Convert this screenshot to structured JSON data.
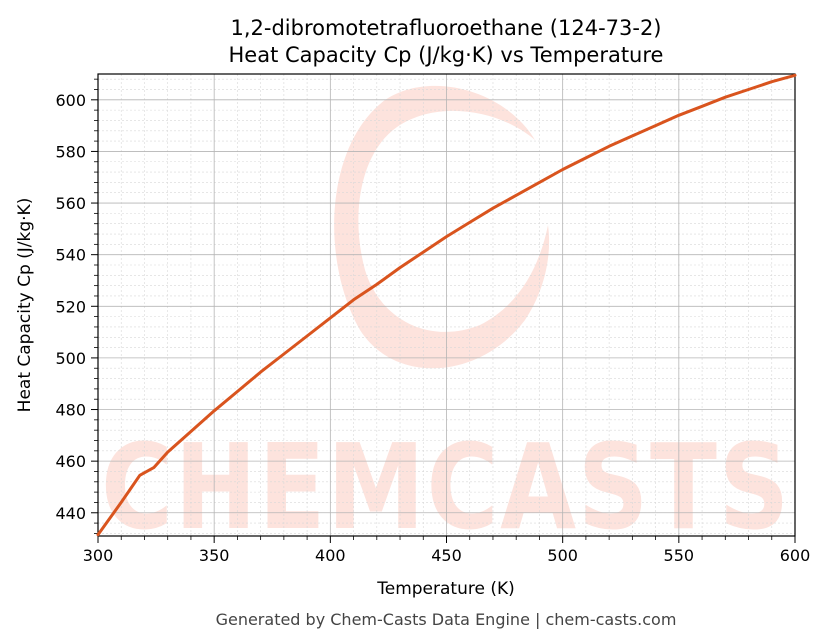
{
  "chart_data": {
    "type": "line",
    "title_line1": "1,2-dibromotetrafluoroethane (124-73-2)",
    "title_line2": "Heat Capacity Cp (J/kg·K) vs Temperature",
    "xlabel": "Temperature (K)",
    "ylabel": "Heat Capacity Cp (J/kg·K)",
    "xlim": [
      300,
      600
    ],
    "ylim": [
      431,
      610
    ],
    "x_ticks": [
      300,
      350,
      400,
      450,
      500,
      550,
      600
    ],
    "y_ticks": [
      440,
      460,
      480,
      500,
      520,
      540,
      560,
      580,
      600
    ],
    "grid": true,
    "line_color": "#d9541e",
    "series": [
      {
        "x": [
          300,
          310,
          318,
          324,
          330,
          340,
          350,
          360,
          370,
          380,
          390,
          400,
          410,
          420,
          430,
          440,
          450,
          460,
          470,
          480,
          490,
          500,
          510,
          520,
          530,
          540,
          550,
          560,
          570,
          580,
          590,
          600
        ],
        "values": [
          431.5,
          444,
          454.5,
          457.5,
          463.5,
          471.5,
          479.5,
          487,
          494.5,
          501.5,
          508.5,
          515.5,
          522.5,
          528.5,
          535,
          541,
          547,
          552.5,
          558,
          563,
          568,
          573,
          577.5,
          582,
          586,
          590,
          594,
          597.5,
          601,
          604,
          607,
          609.5
        ]
      }
    ]
  },
  "watermark": {
    "text": "CHEMCASTS",
    "color": "#fde3dd"
  },
  "footer": "Generated by Chem-Casts Data Engine | chem-casts.com"
}
